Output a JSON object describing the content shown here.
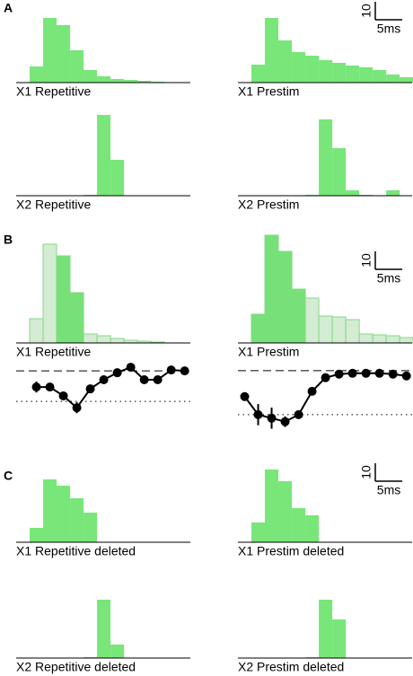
{
  "panels": [
    "A",
    "B",
    "C"
  ],
  "scale_bars": [
    {
      "y": 10,
      "x": 5,
      "x_label": "5ms"
    },
    {
      "y": 10,
      "x": 5,
      "x_label": "5ms"
    },
    {
      "y": 10,
      "x": 5,
      "x_label": "5ms"
    }
  ],
  "chart_data": [
    {
      "type": "histogram",
      "xlabel": "X1 Repetitive",
      "xlim": [
        0,
        32.3
      ],
      "ylim": [
        0,
        45
      ],
      "bins": [
        2.5,
        5,
        7.5,
        10,
        12.5,
        15,
        17.5,
        20,
        22.5,
        25,
        27.5
      ],
      "series": [
        {
          "color": "#78e678",
          "values": [
            9,
            36,
            32,
            18,
            7,
            3.5,
            2,
            1.5,
            1,
            0.5
          ]
        }
      ]
    },
    {
      "type": "histogram",
      "xlabel": "X1 Prestim",
      "xlim": [
        0,
        32.3
      ],
      "ylim": [
        0,
        45
      ],
      "bins": [
        2.5,
        5,
        7.5,
        10,
        12.5,
        15,
        17.5,
        20,
        22.5,
        25,
        27.5,
        30,
        32.5
      ],
      "series": [
        {
          "color": "#78e678",
          "values": [
            10,
            36,
            23.5,
            17,
            15,
            12.5,
            11,
            9.5,
            8.5,
            7,
            4.5,
            3
          ]
        }
      ]
    },
    {
      "type": "histogram",
      "xlabel": "X2 Repetitive",
      "xlim": [
        0,
        32.3
      ],
      "ylim": [
        0,
        45
      ],
      "bins": [
        12.5,
        15,
        17.5,
        20
      ],
      "series": [
        {
          "color": "#78e678",
          "values": [
            0.5,
            45,
            20
          ]
        }
      ]
    },
    {
      "type": "histogram",
      "xlabel": "X2 Prestim",
      "xlim": [
        0,
        32.3
      ],
      "ylim": [
        0,
        45
      ],
      "bins": [
        12.5,
        15,
        17.5,
        20,
        22.5,
        25,
        27.5,
        30
      ],
      "series": [
        {
          "color": "#78e678",
          "values": [
            0.5,
            42.5,
            26.5,
            3,
            0.5,
            0,
            3
          ]
        }
      ]
    },
    {
      "type": "histogram",
      "xlabel": "X1 Repetitive",
      "xlim": [
        0,
        32.3
      ],
      "ylim": [
        0,
        60
      ],
      "bins": [
        2.5,
        5,
        7.5,
        10,
        12.5,
        15,
        17.5,
        20,
        22.5,
        25,
        27.5
      ],
      "series": [
        {
          "color": "#d3ecd3",
          "edgecolor": "#86d886",
          "values": [
            13.5,
            55,
            48.5,
            28,
            5,
            4,
            2.5,
            1.5,
            1,
            0.5
          ]
        },
        {
          "color": "#78e078",
          "values": [
            0,
            0,
            48.5,
            28,
            0,
            0,
            0,
            0,
            0,
            0
          ]
        }
      ]
    },
    {
      "type": "histogram",
      "xlabel": "X1 Prestim",
      "xlim": [
        0,
        32.3
      ],
      "ylim": [
        0,
        60
      ],
      "bins": [
        2.5,
        5,
        7.5,
        10,
        12.5,
        15,
        17.5,
        20,
        22.5,
        25,
        27.5,
        30,
        32.5
      ],
      "series": [
        {
          "color": "#d3ecd3",
          "edgecolor": "#86d886",
          "values": [
            16,
            60,
            51,
            30,
            25,
            15,
            14.5,
            13,
            5,
            4.5,
            4,
            3
          ]
        },
        {
          "color": "#78e078",
          "values": [
            16,
            60,
            51,
            30,
            0,
            0,
            0,
            0,
            0,
            0,
            0,
            0
          ]
        }
      ]
    },
    {
      "type": "line",
      "xlim": [
        0,
        32.3
      ],
      "ylim": [
        -0.44,
        1.24
      ],
      "color": "#000000",
      "hlines": [
        {
          "value": 1,
          "style": "dashed"
        },
        {
          "value": 0,
          "style": "dotted"
        }
      ],
      "x": [
        3.75,
        6.25,
        8.75,
        11.25,
        13.75,
        16.25,
        18.75,
        21.25,
        23.75,
        26.25,
        28.75,
        31.25
      ],
      "values": [
        0.47,
        0.47,
        0.18,
        -0.21,
        0.41,
        0.71,
        0.94,
        1.12,
        0.71,
        0.71,
        1.03,
        1.0
      ],
      "errors": [
        0.18,
        0.06,
        0.06,
        0.18,
        0.06,
        0.06,
        0.06,
        0.06,
        0.06,
        0.06,
        0.06,
        0.06
      ]
    },
    {
      "type": "line",
      "xlim": [
        0,
        32.3
      ],
      "ylim": [
        -0.37,
        1.16
      ],
      "color": "#000000",
      "hlines": [
        {
          "value": 1,
          "style": "dashed"
        },
        {
          "value": 0,
          "style": "dotted"
        }
      ],
      "x": [
        1.25,
        3.75,
        6.25,
        8.75,
        11.25,
        13.75,
        16.25,
        18.75,
        21.25,
        23.75,
        26.25,
        28.75,
        31.25
      ],
      "values": [
        0.41,
        0,
        -0.08,
        -0.16,
        0,
        0.53,
        0.84,
        0.92,
        0.94,
        0.94,
        0.94,
        0.92,
        0.88
      ],
      "errors": [
        0.04,
        0.24,
        0.24,
        0.12,
        0.04,
        0.04,
        0.04,
        0.04,
        0.04,
        0.04,
        0.04,
        0.04,
        0.04
      ]
    },
    {
      "type": "histogram",
      "xlabel": "X1 Repetitive deleted",
      "xlim": [
        0,
        32.3
      ],
      "ylim": [
        0,
        45
      ],
      "bins": [
        2.5,
        5,
        7.5,
        10,
        12.5,
        15
      ],
      "series": [
        {
          "color": "#78e678",
          "values": [
            8,
            35,
            31.5,
            24.5,
            16.5
          ]
        }
      ]
    },
    {
      "type": "histogram",
      "xlabel": "X1 Prestim deleted",
      "xlim": [
        0,
        32.3
      ],
      "ylim": [
        0,
        45
      ],
      "bins": [
        2.5,
        5,
        7.5,
        10,
        12.5,
        15
      ],
      "series": [
        {
          "color": "#78e678",
          "values": [
            11,
            40.5,
            34,
            19,
            15
          ]
        }
      ]
    },
    {
      "type": "histogram",
      "xlabel": "X2 Repetitive deleted",
      "xlim": [
        0,
        32.3
      ],
      "ylim": [
        0,
        45
      ],
      "bins": [
        12.5,
        15,
        17.5,
        20
      ],
      "series": [
        {
          "color": "#78e678",
          "values": [
            0.5,
            32.5,
            7.5
          ]
        }
      ]
    },
    {
      "type": "histogram",
      "xlabel": "X2 Prestim deleted",
      "xlim": [
        0,
        32.3
      ],
      "ylim": [
        0,
        45
      ],
      "bins": [
        12.5,
        15,
        17.5,
        20
      ],
      "series": [
        {
          "color": "#78e678",
          "values": [
            0.5,
            32.5,
            21.5
          ]
        }
      ]
    }
  ]
}
